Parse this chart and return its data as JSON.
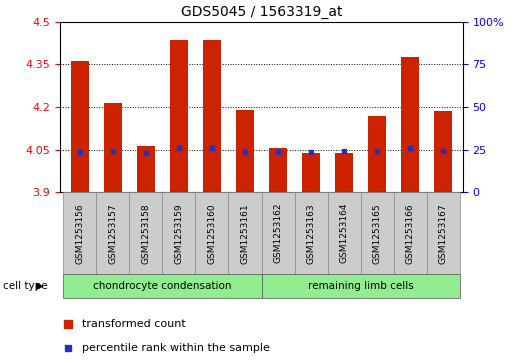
{
  "title": "GDS5045 / 1563319_at",
  "samples": [
    "GSM1253156",
    "GSM1253157",
    "GSM1253158",
    "GSM1253159",
    "GSM1253160",
    "GSM1253161",
    "GSM1253162",
    "GSM1253163",
    "GSM1253164",
    "GSM1253165",
    "GSM1253166",
    "GSM1253167"
  ],
  "red_values": [
    4.362,
    4.215,
    4.063,
    4.436,
    4.435,
    4.188,
    4.055,
    4.04,
    4.037,
    4.17,
    4.375,
    4.185
  ],
  "blue_values": [
    4.043,
    4.045,
    4.04,
    4.055,
    4.055,
    4.042,
    4.042,
    4.043,
    4.044,
    4.047,
    4.055,
    4.045
  ],
  "ymin": 3.9,
  "ymax": 4.5,
  "yticks_left": [
    3.9,
    4.05,
    4.2,
    4.35,
    4.5
  ],
  "yticks_right_pct": [
    0,
    25,
    50,
    75,
    100
  ],
  "bar_color": "#cc2200",
  "blue_color": "#2233bb",
  "group1_label": "chondrocyte condensation",
  "group2_label": "remaining limb cells",
  "group1_indices": [
    0,
    1,
    2,
    3,
    4,
    5
  ],
  "group2_indices": [
    6,
    7,
    8,
    9,
    10,
    11
  ],
  "cell_type_label": "cell type",
  "legend_red": "transformed count",
  "legend_blue": "percentile rank within the sample",
  "bar_width": 0.55,
  "group_box_color": "#90EE90",
  "sample_box_color": "#cccccc",
  "background_color": "#ffffff"
}
